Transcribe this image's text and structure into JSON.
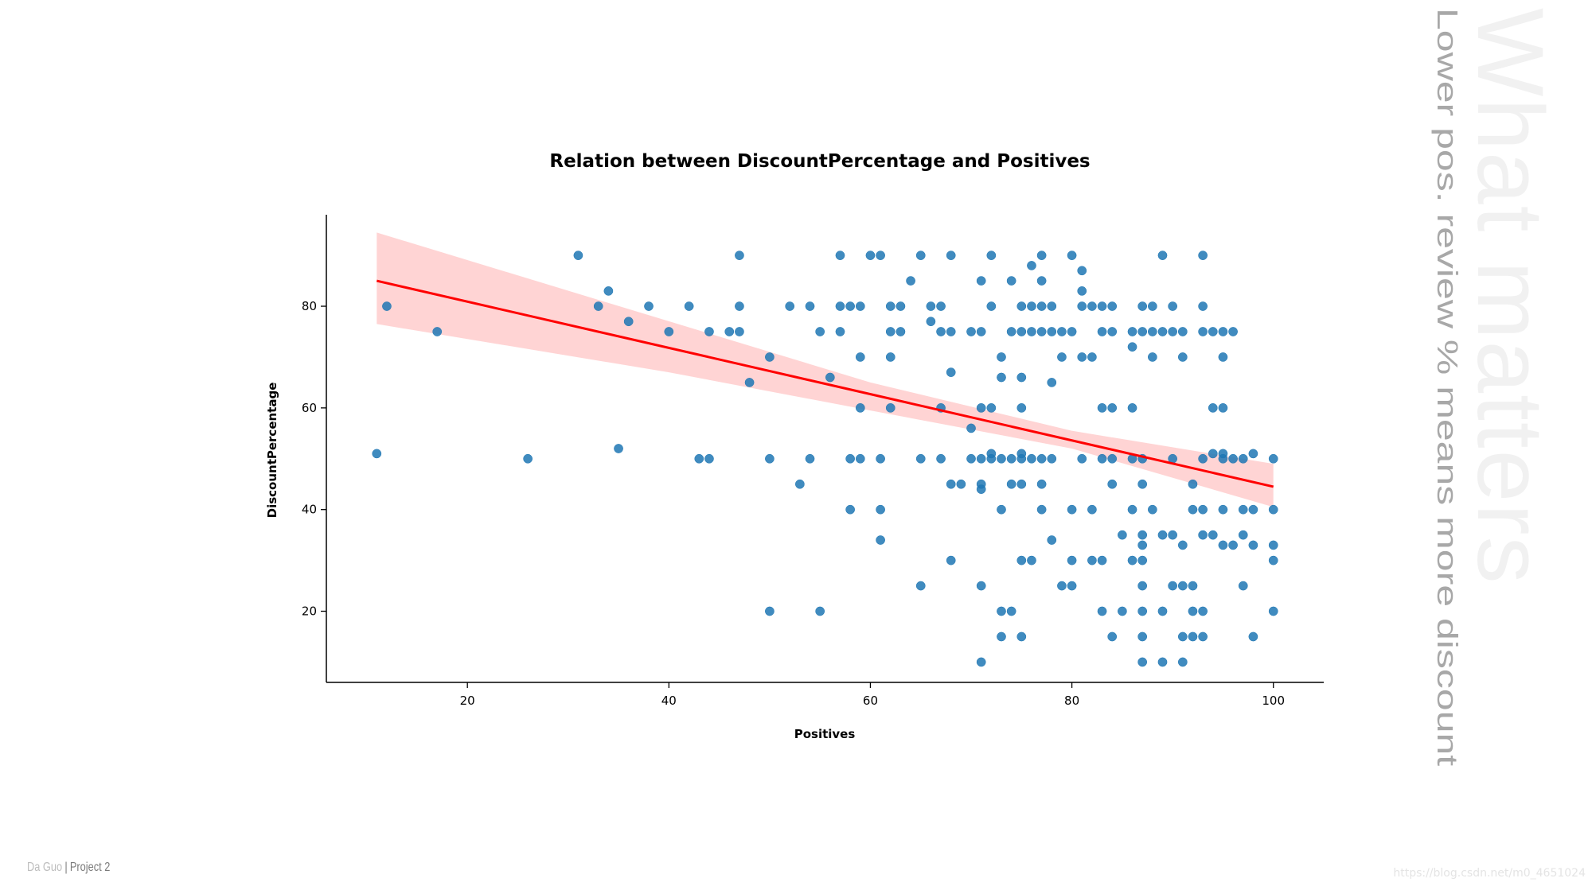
{
  "chart_data": {
    "type": "scatter",
    "title": "Relation between DiscountPercentage and Positives",
    "xlabel": "Positives",
    "ylabel": "DiscountPercentage",
    "xlim": [
      6,
      105
    ],
    "ylim": [
      6,
      98
    ],
    "xticks": [
      20,
      40,
      60,
      80,
      100
    ],
    "yticks": [
      20,
      40,
      60,
      80
    ],
    "grid": false,
    "point_color": "#1f77b4",
    "regression": {
      "color": "#ff0000",
      "band_color": "#ffcccc",
      "line": [
        [
          11,
          85
        ],
        [
          100,
          44.5
        ]
      ],
      "band_upper": [
        [
          11,
          94.5
        ],
        [
          60,
          65
        ],
        [
          80,
          55.5
        ],
        [
          100,
          49
        ]
      ],
      "band_lower": [
        [
          11,
          76.5
        ],
        [
          40,
          67
        ],
        [
          60,
          59.5
        ],
        [
          80,
          52
        ],
        [
          100,
          40.5
        ]
      ]
    },
    "points": [
      [
        11,
        51
      ],
      [
        12,
        80
      ],
      [
        17,
        75
      ],
      [
        26,
        50
      ],
      [
        31,
        90
      ],
      [
        33,
        80
      ],
      [
        34,
        83
      ],
      [
        35,
        52
      ],
      [
        36,
        77
      ],
      [
        38,
        80
      ],
      [
        40,
        75
      ],
      [
        42,
        80
      ],
      [
        43,
        50
      ],
      [
        44,
        75
      ],
      [
        44,
        50
      ],
      [
        46,
        75
      ],
      [
        47,
        90
      ],
      [
        47,
        80
      ],
      [
        47,
        75
      ],
      [
        48,
        65
      ],
      [
        50,
        70
      ],
      [
        50,
        50
      ],
      [
        50,
        20
      ],
      [
        52,
        80
      ],
      [
        53,
        45
      ],
      [
        54,
        80
      ],
      [
        54,
        50
      ],
      [
        55,
        75
      ],
      [
        55,
        20
      ],
      [
        56,
        66
      ],
      [
        57,
        90
      ],
      [
        57,
        80
      ],
      [
        57,
        75
      ],
      [
        58,
        80
      ],
      [
        58,
        50
      ],
      [
        58,
        40
      ],
      [
        59,
        80
      ],
      [
        59,
        70
      ],
      [
        59,
        60
      ],
      [
        59,
        50
      ],
      [
        60,
        90
      ],
      [
        61,
        90
      ],
      [
        61,
        50
      ],
      [
        61,
        40
      ],
      [
        61,
        34
      ],
      [
        62,
        80
      ],
      [
        62,
        75
      ],
      [
        62,
        70
      ],
      [
        62,
        60
      ],
      [
        63,
        80
      ],
      [
        63,
        75
      ],
      [
        64,
        85
      ],
      [
        65,
        90
      ],
      [
        65,
        50
      ],
      [
        65,
        25
      ],
      [
        66,
        80
      ],
      [
        66,
        77
      ],
      [
        67,
        80
      ],
      [
        67,
        75
      ],
      [
        67,
        60
      ],
      [
        67,
        50
      ],
      [
        68,
        90
      ],
      [
        68,
        75
      ],
      [
        68,
        67
      ],
      [
        68,
        45
      ],
      [
        68,
        30
      ],
      [
        69,
        45
      ],
      [
        70,
        75
      ],
      [
        70,
        56
      ],
      [
        70,
        50
      ],
      [
        71,
        85
      ],
      [
        71,
        75
      ],
      [
        71,
        60
      ],
      [
        71,
        50
      ],
      [
        71,
        45
      ],
      [
        71,
        44
      ],
      [
        71,
        25
      ],
      [
        71,
        10
      ],
      [
        72,
        90
      ],
      [
        72,
        80
      ],
      [
        72,
        60
      ],
      [
        72,
        51
      ],
      [
        72,
        50
      ],
      [
        73,
        70
      ],
      [
        73,
        66
      ],
      [
        73,
        50
      ],
      [
        73,
        40
      ],
      [
        73,
        20
      ],
      [
        73,
        15
      ],
      [
        74,
        85
      ],
      [
        74,
        75
      ],
      [
        74,
        50
      ],
      [
        74,
        45
      ],
      [
        74,
        20
      ],
      [
        75,
        80
      ],
      [
        75,
        75
      ],
      [
        75,
        66
      ],
      [
        75,
        60
      ],
      [
        75,
        51
      ],
      [
        75,
        50
      ],
      [
        75,
        45
      ],
      [
        75,
        30
      ],
      [
        75,
        15
      ],
      [
        76,
        88
      ],
      [
        76,
        80
      ],
      [
        76,
        75
      ],
      [
        76,
        50
      ],
      [
        76,
        30
      ],
      [
        77,
        90
      ],
      [
        77,
        85
      ],
      [
        77,
        80
      ],
      [
        77,
        75
      ],
      [
        77,
        50
      ],
      [
        77,
        45
      ],
      [
        77,
        40
      ],
      [
        78,
        80
      ],
      [
        78,
        75
      ],
      [
        78,
        65
      ],
      [
        78,
        50
      ],
      [
        78,
        34
      ],
      [
        79,
        75
      ],
      [
        79,
        70
      ],
      [
        79,
        25
      ],
      [
        80,
        90
      ],
      [
        80,
        75
      ],
      [
        80,
        40
      ],
      [
        80,
        30
      ],
      [
        80,
        25
      ],
      [
        81,
        87
      ],
      [
        81,
        83
      ],
      [
        81,
        80
      ],
      [
        81,
        70
      ],
      [
        81,
        50
      ],
      [
        82,
        80
      ],
      [
        82,
        70
      ],
      [
        82,
        40
      ],
      [
        82,
        30
      ],
      [
        83,
        80
      ],
      [
        83,
        75
      ],
      [
        83,
        60
      ],
      [
        83,
        50
      ],
      [
        83,
        30
      ],
      [
        83,
        20
      ],
      [
        84,
        80
      ],
      [
        84,
        75
      ],
      [
        84,
        60
      ],
      [
        84,
        50
      ],
      [
        84,
        45
      ],
      [
        84,
        15
      ],
      [
        85,
        35
      ],
      [
        85,
        20
      ],
      [
        86,
        75
      ],
      [
        86,
        72
      ],
      [
        86,
        60
      ],
      [
        86,
        50
      ],
      [
        86,
        40
      ],
      [
        86,
        30
      ],
      [
        87,
        80
      ],
      [
        87,
        75
      ],
      [
        87,
        50
      ],
      [
        87,
        45
      ],
      [
        87,
        35
      ],
      [
        87,
        33
      ],
      [
        87,
        30
      ],
      [
        87,
        25
      ],
      [
        87,
        20
      ],
      [
        87,
        15
      ],
      [
        87,
        10
      ],
      [
        88,
        80
      ],
      [
        88,
        75
      ],
      [
        88,
        70
      ],
      [
        88,
        40
      ],
      [
        89,
        90
      ],
      [
        89,
        75
      ],
      [
        89,
        35
      ],
      [
        89,
        20
      ],
      [
        89,
        10
      ],
      [
        90,
        80
      ],
      [
        90,
        75
      ],
      [
        90,
        50
      ],
      [
        90,
        35
      ],
      [
        90,
        25
      ],
      [
        91,
        75
      ],
      [
        91,
        70
      ],
      [
        91,
        33
      ],
      [
        91,
        25
      ],
      [
        91,
        15
      ],
      [
        91,
        10
      ],
      [
        92,
        45
      ],
      [
        92,
        40
      ],
      [
        92,
        25
      ],
      [
        92,
        20
      ],
      [
        92,
        15
      ],
      [
        93,
        90
      ],
      [
        93,
        80
      ],
      [
        93,
        75
      ],
      [
        93,
        50
      ],
      [
        93,
        40
      ],
      [
        93,
        35
      ],
      [
        93,
        20
      ],
      [
        93,
        15
      ],
      [
        94,
        75
      ],
      [
        94,
        60
      ],
      [
        94,
        51
      ],
      [
        94,
        35
      ],
      [
        95,
        75
      ],
      [
        95,
        70
      ],
      [
        95,
        60
      ],
      [
        95,
        51
      ],
      [
        95,
        50
      ],
      [
        95,
        40
      ],
      [
        95,
        33
      ],
      [
        96,
        75
      ],
      [
        96,
        50
      ],
      [
        96,
        33
      ],
      [
        97,
        50
      ],
      [
        97,
        40
      ],
      [
        97,
        35
      ],
      [
        97,
        25
      ],
      [
        98,
        51
      ],
      [
        98,
        40
      ],
      [
        98,
        33
      ],
      [
        98,
        15
      ],
      [
        100,
        50
      ],
      [
        100,
        40
      ],
      [
        100,
        33
      ],
      [
        100,
        30
      ],
      [
        100,
        20
      ]
    ]
  },
  "watermark": {
    "headline": "What matters",
    "subtitle": "Lower pos. review % means more discount"
  },
  "footer": {
    "author": "Da Guo",
    "separator": "|",
    "project": "Project 2",
    "url": "https://blog.csdn.net/m0_4651024"
  }
}
